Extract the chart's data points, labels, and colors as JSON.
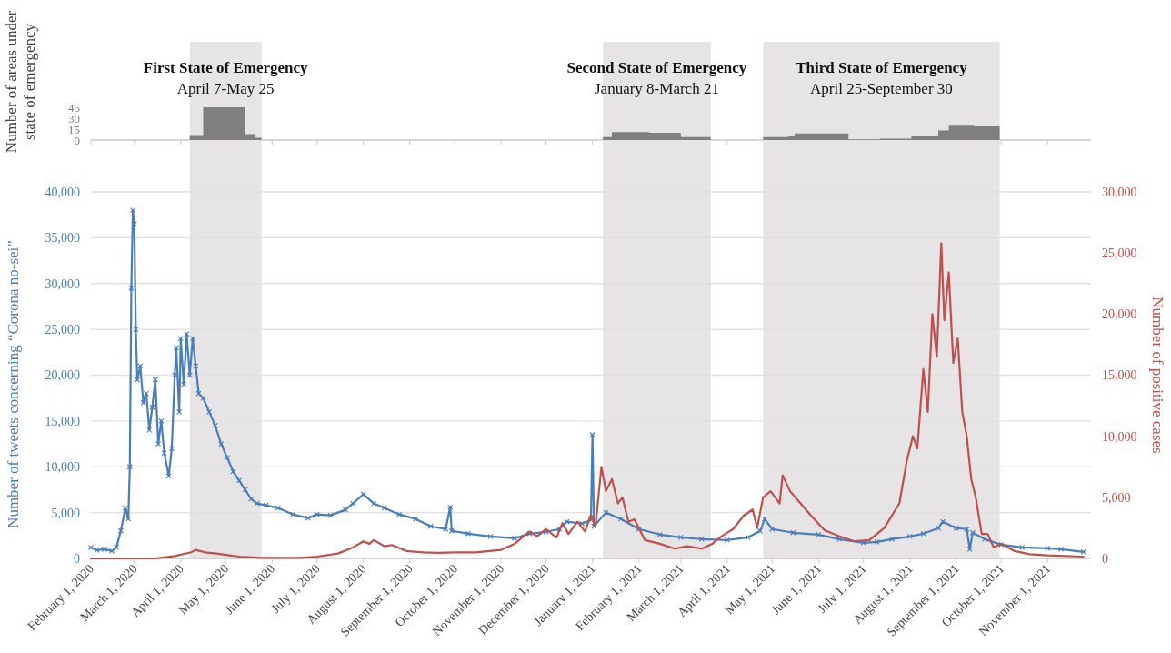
{
  "chart_data": [
    {
      "type": "area",
      "ylabel": "Number of areas under state of emergency",
      "xlim": [
        "2020-02-01",
        "2021-11-30"
      ],
      "ylim": [
        0,
        45
      ],
      "yticks": [
        0,
        15,
        30,
        45
      ],
      "tick_labels": "y",
      "grid": false,
      "xticks": [
        {
          "value": "2020-02-01",
          "label": null
        },
        {
          "value": "2020-03-01",
          "label": null
        },
        {
          "value": "2020-04-01",
          "label": null
        },
        {
          "value": "2020-05-01",
          "label": null
        },
        {
          "value": "2020-06-01",
          "label": null
        },
        {
          "value": "2020-07-01",
          "label": null
        },
        {
          "value": "2020-08-01",
          "label": null
        },
        {
          "value": "2020-09-01",
          "label": null
        },
        {
          "value": "2020-10-01",
          "label": null
        },
        {
          "value": "2020-11-01",
          "label": null
        },
        {
          "value": "2020-12-01",
          "label": null
        },
        {
          "value": "2021-01-01",
          "label": null
        },
        {
          "value": "2021-02-01",
          "label": null
        },
        {
          "value": "2021-03-01",
          "label": null
        },
        {
          "value": "2021-04-01",
          "label": null
        },
        {
          "value": "2021-05-01",
          "label": null
        },
        {
          "value": "2021-06-01",
          "label": null
        },
        {
          "value": "2021-07-01",
          "label": null
        },
        {
          "value": "2021-08-01",
          "label": null
        },
        {
          "value": "2021-09-01",
          "label": null
        },
        {
          "value": "2021-10-01",
          "label": null
        },
        {
          "value": "2021-11-01",
          "label": null
        }
      ],
      "bands": [
        {
          "axis": "x",
          "from": "2020-04-07",
          "to": "2020-05-25",
          "label": "First State of Emergency\nApril 7-May 25",
          "color": "#e6e4e5"
        },
        {
          "axis": "x",
          "from": "2021-01-08",
          "to": "2021-03-21",
          "label": "Second State of Emergency\nJanuary 8-March 21",
          "color": "#e6e4e5"
        },
        {
          "axis": "x",
          "from": "2021-04-25",
          "to": "2021-09-30",
          "label": "Third State of Emergency\nApril 25-September 30",
          "color": "#e6e4e5"
        }
      ],
      "series": [
        {
          "color": "#7f7f7f",
          "x": [
            "2020-02-01",
            "2020-04-07",
            "2020-04-07",
            "2020-04-16",
            "2020-04-16",
            "2020-05-14",
            "2020-05-14",
            "2020-05-21",
            "2020-05-21",
            "2020-05-25",
            "2020-05-25",
            "2021-01-08",
            "2021-01-08",
            "2021-01-14",
            "2021-01-14",
            "2021-02-08",
            "2021-02-08",
            "2021-03-01",
            "2021-03-01",
            "2021-03-21",
            "2021-03-21",
            "2021-04-25",
            "2021-04-25",
            "2021-05-12",
            "2021-05-12",
            "2021-05-16",
            "2021-05-16",
            "2021-06-21",
            "2021-06-21",
            "2021-07-12",
            "2021-07-12",
            "2021-08-02",
            "2021-08-02",
            "2021-08-20",
            "2021-08-20",
            "2021-08-27",
            "2021-08-27",
            "2021-09-13",
            "2021-09-13",
            "2021-09-30",
            "2021-09-30",
            "2021-11-30"
          ],
          "values": [
            0,
            0,
            7,
            7,
            45,
            45,
            8,
            8,
            3,
            3,
            0,
            0,
            4,
            4,
            11,
            11,
            10,
            10,
            4,
            4,
            0,
            0,
            4,
            4,
            6,
            6,
            9,
            9,
            1,
            1,
            2,
            2,
            6,
            6,
            13,
            13,
            21,
            21,
            19,
            19,
            0,
            0
          ]
        }
      ]
    },
    {
      "type": "line",
      "ylabel": "Number of tweets concerning “Corona no-sei”",
      "y2label": "Number of positive cases",
      "xlim": [
        "2020-02-01",
        "2021-11-30"
      ],
      "grid": "y",
      "ylim": [
        0,
        40000
      ],
      "yticks": [
        0,
        {
          "value": 5000,
          "label": "5,000"
        },
        {
          "value": 10000,
          "label": "10,000"
        },
        {
          "value": 15000,
          "label": "15,000"
        },
        {
          "value": 20000,
          "label": "20,000"
        },
        {
          "value": 25000,
          "label": "25,000"
        },
        {
          "value": 30000,
          "label": "30,000"
        },
        {
          "value": 35000,
          "label": "35,000"
        },
        {
          "value": 40000,
          "label": "40,000"
        }
      ],
      "y2lim": [
        0,
        30000
      ],
      "y2ticks": [
        0,
        {
          "value": 5000,
          "label": "5,000"
        },
        {
          "value": 10000,
          "label": "10,000"
        },
        {
          "value": 15000,
          "label": "15,000"
        },
        {
          "value": 20000,
          "label": "20,000"
        },
        {
          "value": 25000,
          "label": "25,000"
        },
        {
          "value": 30000,
          "label": "30,000"
        }
      ],
      "xticks": [
        {
          "value": "2020-02-01",
          "label": "February 1, 2020"
        },
        {
          "value": "2020-03-01",
          "label": "March 1, 2020"
        },
        {
          "value": "2020-04-01",
          "label": "April 1, 2020"
        },
        {
          "value": "2020-05-01",
          "label": "May 1, 2020"
        },
        {
          "value": "2020-06-01",
          "label": "June 1, 2020"
        },
        {
          "value": "2020-07-01",
          "label": "July 1, 2020"
        },
        {
          "value": "2020-08-01",
          "label": "August 1, 2020"
        },
        {
          "value": "2020-09-01",
          "label": "September 1, 2020"
        },
        {
          "value": "2020-10-01",
          "label": "October 1, 2020"
        },
        {
          "value": "2020-11-01",
          "label": "November 1, 2020"
        },
        {
          "value": "2020-12-01",
          "label": "December 1, 2020"
        },
        {
          "value": "2021-01-01",
          "label": "January 1, 2021"
        },
        {
          "value": "2021-02-01",
          "label": "February 1, 2021"
        },
        {
          "value": "2021-03-01",
          "label": "March 1, 2021"
        },
        {
          "value": "2021-04-01",
          "label": "April 1, 2021"
        },
        {
          "value": "2021-05-01",
          "label": "May 1, 2021"
        },
        {
          "value": "2021-06-01",
          "label": "June 1, 2021"
        },
        {
          "value": "2021-07-01",
          "label": "July 1, 2021"
        },
        {
          "value": "2021-08-01",
          "label": "August 1, 2021"
        },
        {
          "value": "2021-09-01",
          "label": "September 1, 2021"
        },
        {
          "value": "2021-10-01",
          "label": "October 1, 2021"
        },
        {
          "value": "2021-11-01",
          "label": "November 1, 2021"
        }
      ],
      "bands": [
        {
          "axis": "x",
          "from": "2020-04-07",
          "to": "2020-05-25",
          "color": "#e6e4e5"
        },
        {
          "axis": "x",
          "from": "2021-01-08",
          "to": "2021-03-21",
          "color": "#e6e4e5"
        },
        {
          "axis": "x",
          "from": "2021-04-25",
          "to": "2021-09-30",
          "color": "#e6e4e5"
        }
      ],
      "series": [
        {
          "color": "#4a7ebb",
          "marker": "cross",
          "x": [
            "2020-02-01",
            "2020-02-05",
            "2020-02-10",
            "2020-02-15",
            "2020-02-18",
            "2020-02-21",
            "2020-02-24",
            "2020-02-26",
            "2020-02-27",
            "2020-02-28",
            "2020-02-29",
            "2020-03-01",
            "2020-03-02",
            "2020-03-03",
            "2020-03-05",
            "2020-03-07",
            "2020-03-09",
            "2020-03-11",
            "2020-03-13",
            "2020-03-15",
            "2020-03-17",
            "2020-03-19",
            "2020-03-21",
            "2020-03-24",
            "2020-03-26",
            "2020-03-28",
            "2020-03-29",
            "2020-03-31",
            "2020-04-01",
            "2020-04-03",
            "2020-04-05",
            "2020-04-07",
            "2020-04-09",
            "2020-04-11",
            "2020-04-13",
            "2020-04-16",
            "2020-04-20",
            "2020-04-24",
            "2020-04-28",
            "2020-05-02",
            "2020-05-06",
            "2020-05-10",
            "2020-05-14",
            "2020-05-18",
            "2020-05-22",
            "2020-05-28",
            "2020-06-05",
            "2020-06-15",
            "2020-06-25",
            "2020-07-01",
            "2020-07-10",
            "2020-07-20",
            "2020-07-25",
            "2020-08-01",
            "2020-08-08",
            "2020-08-15",
            "2020-08-25",
            "2020-09-05",
            "2020-09-15",
            "2020-09-25",
            "2020-09-28",
            "2020-09-29",
            "2020-10-10",
            "2020-10-25",
            "2020-11-10",
            "2020-11-20",
            "2020-12-01",
            "2020-12-10",
            "2020-12-15",
            "2020-12-25",
            "2020-12-31",
            "2021-01-01",
            "2021-01-02",
            "2021-01-10",
            "2021-01-20",
            "2021-02-01",
            "2021-02-15",
            "2021-03-01",
            "2021-03-15",
            "2021-04-01",
            "2021-04-15",
            "2021-04-23",
            "2021-04-26",
            "2021-05-01",
            "2021-05-15",
            "2021-06-01",
            "2021-06-15",
            "2021-07-01",
            "2021-07-10",
            "2021-07-20",
            "2021-08-01",
            "2021-08-10",
            "2021-08-20",
            "2021-08-23",
            "2021-09-01",
            "2021-09-08",
            "2021-09-10",
            "2021-09-12",
            "2021-09-20",
            "2021-10-01",
            "2021-10-15",
            "2021-11-01",
            "2021-11-10",
            "2021-11-25"
          ],
          "values": [
            1200,
            900,
            1000,
            800,
            1200,
            3000,
            5500,
            4300,
            10000,
            29500,
            38000,
            36500,
            25000,
            19500,
            21000,
            17000,
            18000,
            14000,
            16500,
            19500,
            12500,
            15000,
            11500,
            9000,
            12000,
            20000,
            23000,
            16000,
            24000,
            19000,
            24500,
            20000,
            24000,
            21000,
            18000,
            17500,
            16000,
            14500,
            12500,
            11000,
            9500,
            8500,
            7500,
            6500,
            6000,
            5800,
            5500,
            4800,
            4400,
            4800,
            4700,
            5300,
            6000,
            7000,
            6000,
            5500,
            4800,
            4300,
            3500,
            3200,
            5600,
            3000,
            2700,
            2400,
            2200,
            2700,
            2900,
            3200,
            4000,
            3800,
            4200,
            13500,
            3500,
            5000,
            4300,
            3200,
            2600,
            2300,
            2100,
            2000,
            2300,
            3000,
            4300,
            3200,
            2800,
            2600,
            2100,
            1700,
            1800,
            2100,
            2400,
            2700,
            3300,
            4000,
            3300,
            3200,
            1000,
            2800,
            2100,
            1500,
            1200,
            1100,
            1000,
            700
          ]
        },
        {
          "color": "#c0504d",
          "axis": "y2",
          "marker": "none",
          "x": [
            "2020-02-01",
            "2020-03-15",
            "2020-03-28",
            "2020-04-08",
            "2020-04-11",
            "2020-04-17",
            "2020-04-25",
            "2020-05-10",
            "2020-05-25",
            "2020-06-20",
            "2020-07-01",
            "2020-07-15",
            "2020-07-25",
            "2020-08-01",
            "2020-08-05",
            "2020-08-08",
            "2020-08-15",
            "2020-08-20",
            "2020-08-30",
            "2020-09-10",
            "2020-09-20",
            "2020-10-01",
            "2020-10-15",
            "2020-11-01",
            "2020-11-10",
            "2020-11-20",
            "2020-11-25",
            "2020-12-01",
            "2020-12-08",
            "2020-12-12",
            "2020-12-16",
            "2020-12-22",
            "2020-12-27",
            "2020-12-31",
            "2021-01-03",
            "2021-01-07",
            "2021-01-10",
            "2021-01-14",
            "2021-01-18",
            "2021-01-21",
            "2021-01-25",
            "2021-01-29",
            "2021-02-05",
            "2021-02-15",
            "2021-02-25",
            "2021-03-05",
            "2021-03-15",
            "2021-03-22",
            "2021-03-28",
            "2021-04-05",
            "2021-04-12",
            "2021-04-18",
            "2021-04-21",
            "2021-04-25",
            "2021-04-30",
            "2021-05-06",
            "2021-05-08",
            "2021-05-13",
            "2021-05-20",
            "2021-05-27",
            "2021-06-05",
            "2021-06-15",
            "2021-06-25",
            "2021-07-05",
            "2021-07-15",
            "2021-07-25",
            "2021-07-30",
            "2021-08-03",
            "2021-08-06",
            "2021-08-10",
            "2021-08-13",
            "2021-08-16",
            "2021-08-19",
            "2021-08-22",
            "2021-08-24",
            "2021-08-27",
            "2021-08-30",
            "2021-09-02",
            "2021-09-05",
            "2021-09-08",
            "2021-09-11",
            "2021-09-14",
            "2021-09-18",
            "2021-09-22",
            "2021-09-26",
            "2021-10-01",
            "2021-10-10",
            "2021-10-20",
            "2021-11-01",
            "2021-11-25"
          ],
          "values": [
            0,
            0,
            200,
            500,
            700,
            500,
            400,
            150,
            50,
            50,
            150,
            400,
            900,
            1400,
            1200,
            1500,
            1000,
            1100,
            600,
            500,
            450,
            500,
            500,
            700,
            1200,
            2200,
            1800,
            2400,
            1700,
            2900,
            2000,
            3000,
            2200,
            3600,
            2600,
            7500,
            5500,
            6500,
            4500,
            5000,
            3000,
            3200,
            1500,
            1200,
            800,
            1000,
            800,
            1200,
            1800,
            2400,
            3500,
            4000,
            2500,
            5000,
            5500,
            4500,
            6800,
            5500,
            4500,
            3500,
            2300,
            1800,
            1400,
            1500,
            2500,
            4500,
            8000,
            10000,
            9000,
            15500,
            12000,
            20000,
            16500,
            25800,
            19500,
            23400,
            16000,
            18000,
            12000,
            10000,
            6500,
            5000,
            2000,
            2000,
            900,
            1200,
            600,
            350,
            250,
            150
          ]
        }
      ]
    }
  ]
}
